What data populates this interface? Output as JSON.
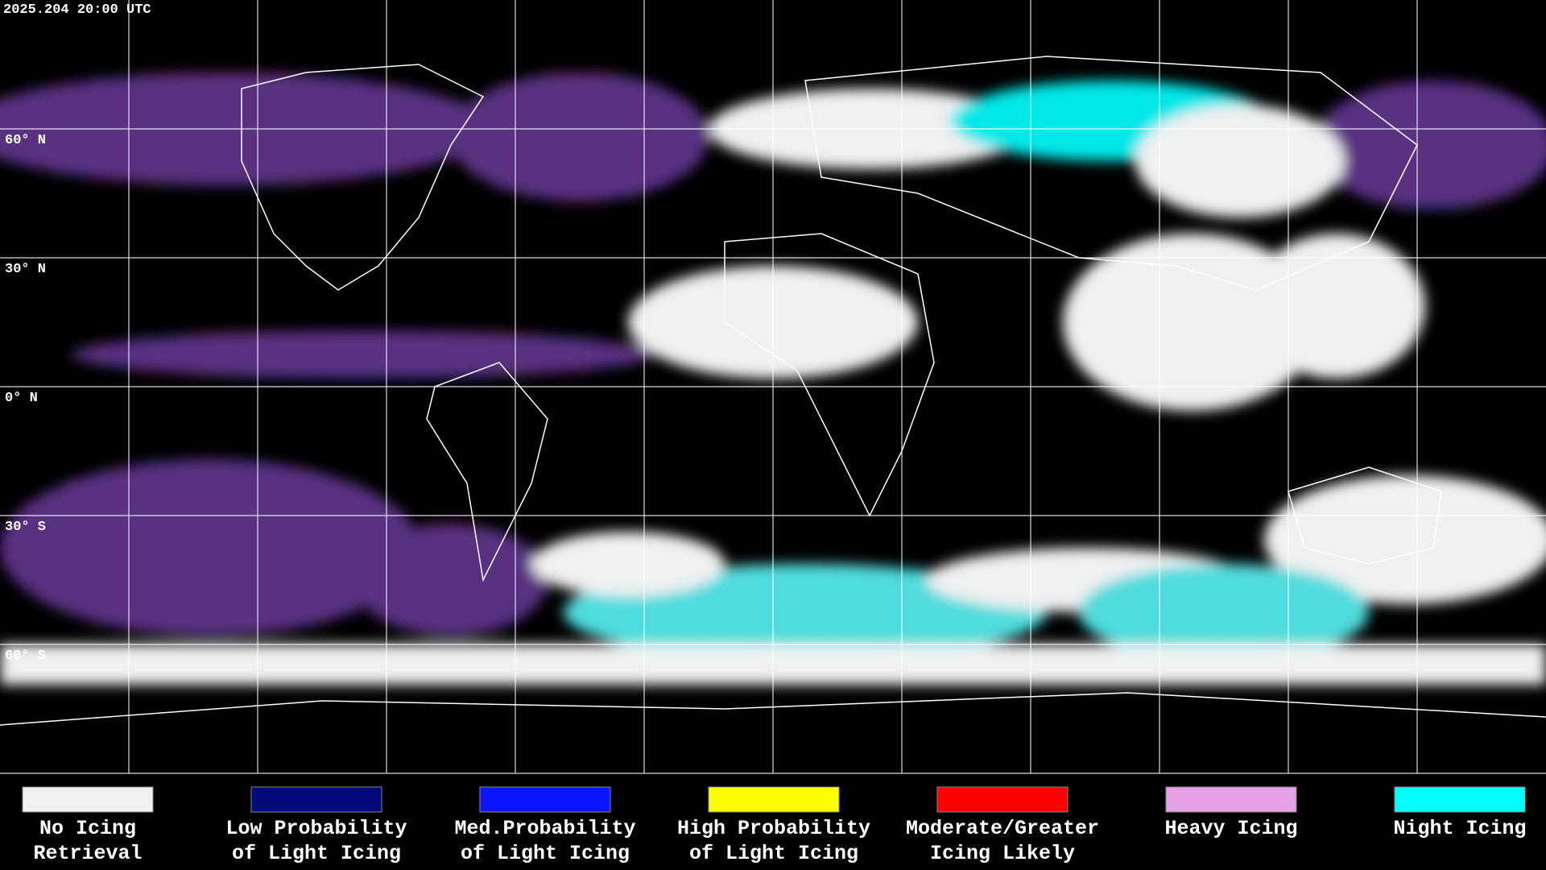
{
  "header": {
    "timestamp": "2025.204 20:00 UTC"
  },
  "latitude_labels": [
    "60° N",
    "30° N",
    "0° N",
    "30° S",
    "60° S"
  ],
  "legend": [
    {
      "color": "#f0f0f0",
      "lines": [
        "No Icing",
        "Retrieval"
      ]
    },
    {
      "color": "#000a78",
      "lines": [
        "Low Probability",
        "of Light Icing"
      ]
    },
    {
      "color": "#0a14ff",
      "lines": [
        "Med.Probability",
        "of Light Icing"
      ]
    },
    {
      "color": "#ffff00",
      "lines": [
        "High Probability",
        "of Light Icing"
      ]
    },
    {
      "color": "#ff0000",
      "lines": [
        "Moderate/Greater",
        "Icing Likely"
      ]
    },
    {
      "color": "#e6a0e6",
      "lines": [
        "Heavy Icing"
      ]
    },
    {
      "color": "#00ffff",
      "lines": [
        "Night Icing"
      ]
    }
  ]
}
